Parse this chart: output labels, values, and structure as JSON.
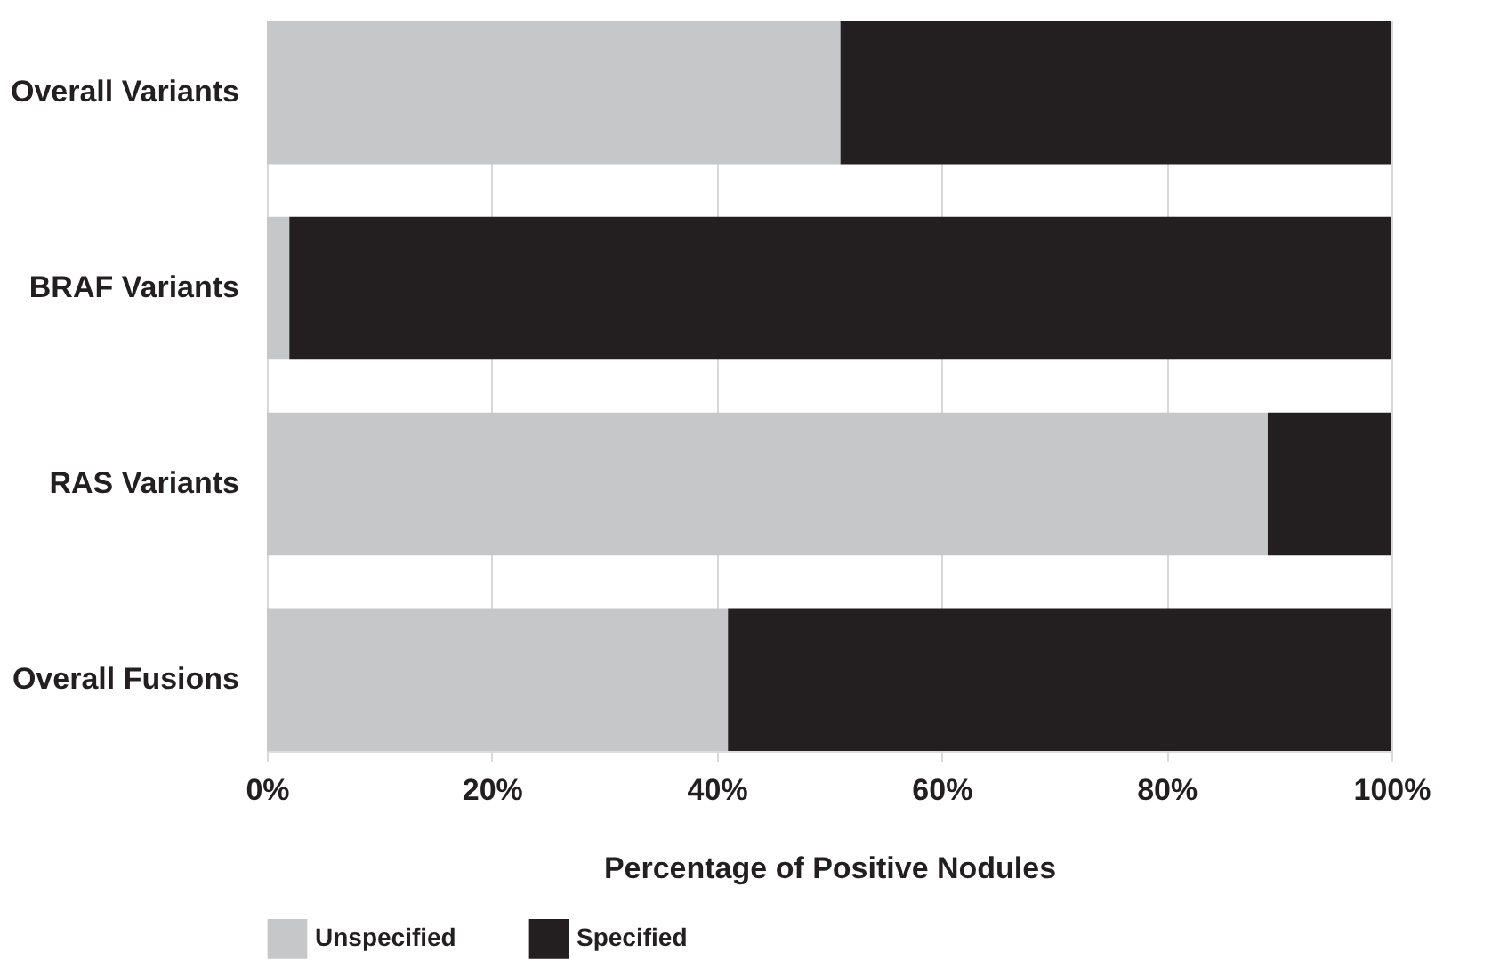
{
  "chart_data": {
    "type": "bar",
    "orientation": "horizontal",
    "stacked": true,
    "xlabel": "Percentage of Positive Nodules",
    "categories": [
      "Overall Variants",
      "BRAF Variants",
      "RAS Variants",
      "Overall Fusions"
    ],
    "series": [
      {
        "name": "Unspecified",
        "color": "#c6c7c9",
        "values": [
          51,
          2,
          89,
          41
        ]
      },
      {
        "name": "Specified",
        "color": "#231f20",
        "values": [
          49,
          98,
          11,
          59
        ]
      }
    ],
    "xlim": [
      0,
      100
    ],
    "xticks": [
      {
        "value": 0,
        "label": "0%"
      },
      {
        "value": 20,
        "label": "20%"
      },
      {
        "value": 40,
        "label": "40%"
      },
      {
        "value": 60,
        "label": "60%"
      },
      {
        "value": 80,
        "label": "80%"
      },
      {
        "value": 100,
        "label": "100%"
      }
    ],
    "grid": "x",
    "legend": "bottom"
  }
}
